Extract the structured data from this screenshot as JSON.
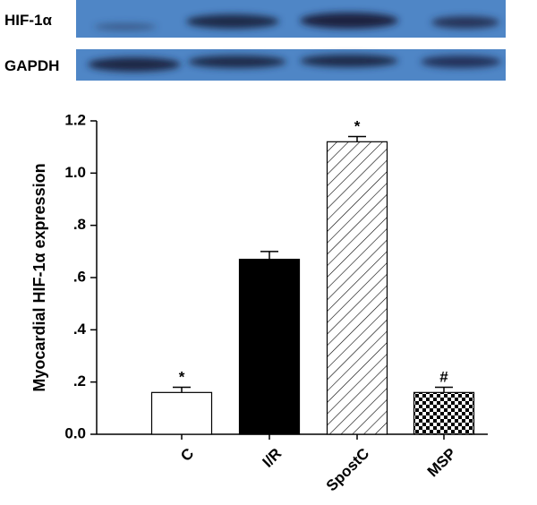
{
  "blot": {
    "rows": [
      "HIF-1α",
      "GAPDH"
    ]
  },
  "chart_data": {
    "type": "bar",
    "ylabel": "Myocardial HIF-1α expression",
    "categories": [
      "C",
      "I/R",
      "SpostC",
      "MSP"
    ],
    "values": [
      0.16,
      0.67,
      1.12,
      0.16
    ],
    "errors": [
      0.02,
      0.03,
      0.02,
      0.02
    ],
    "markers": [
      "*",
      null,
      "*",
      "#"
    ],
    "fills": [
      "white",
      "black",
      "hatch",
      "checker"
    ],
    "ylim": [
      0,
      1.2
    ],
    "yticks": [
      {
        "value": 0,
        "label": "0.0"
      },
      {
        "value": 0.2,
        "label": ".2"
      },
      {
        "value": 0.4,
        "label": ".4"
      },
      {
        "value": 0.6,
        "label": ".6"
      },
      {
        "value": 0.8,
        "label": ".8"
      },
      {
        "value": 1,
        "label": "1.0"
      },
      1.2
    ]
  }
}
